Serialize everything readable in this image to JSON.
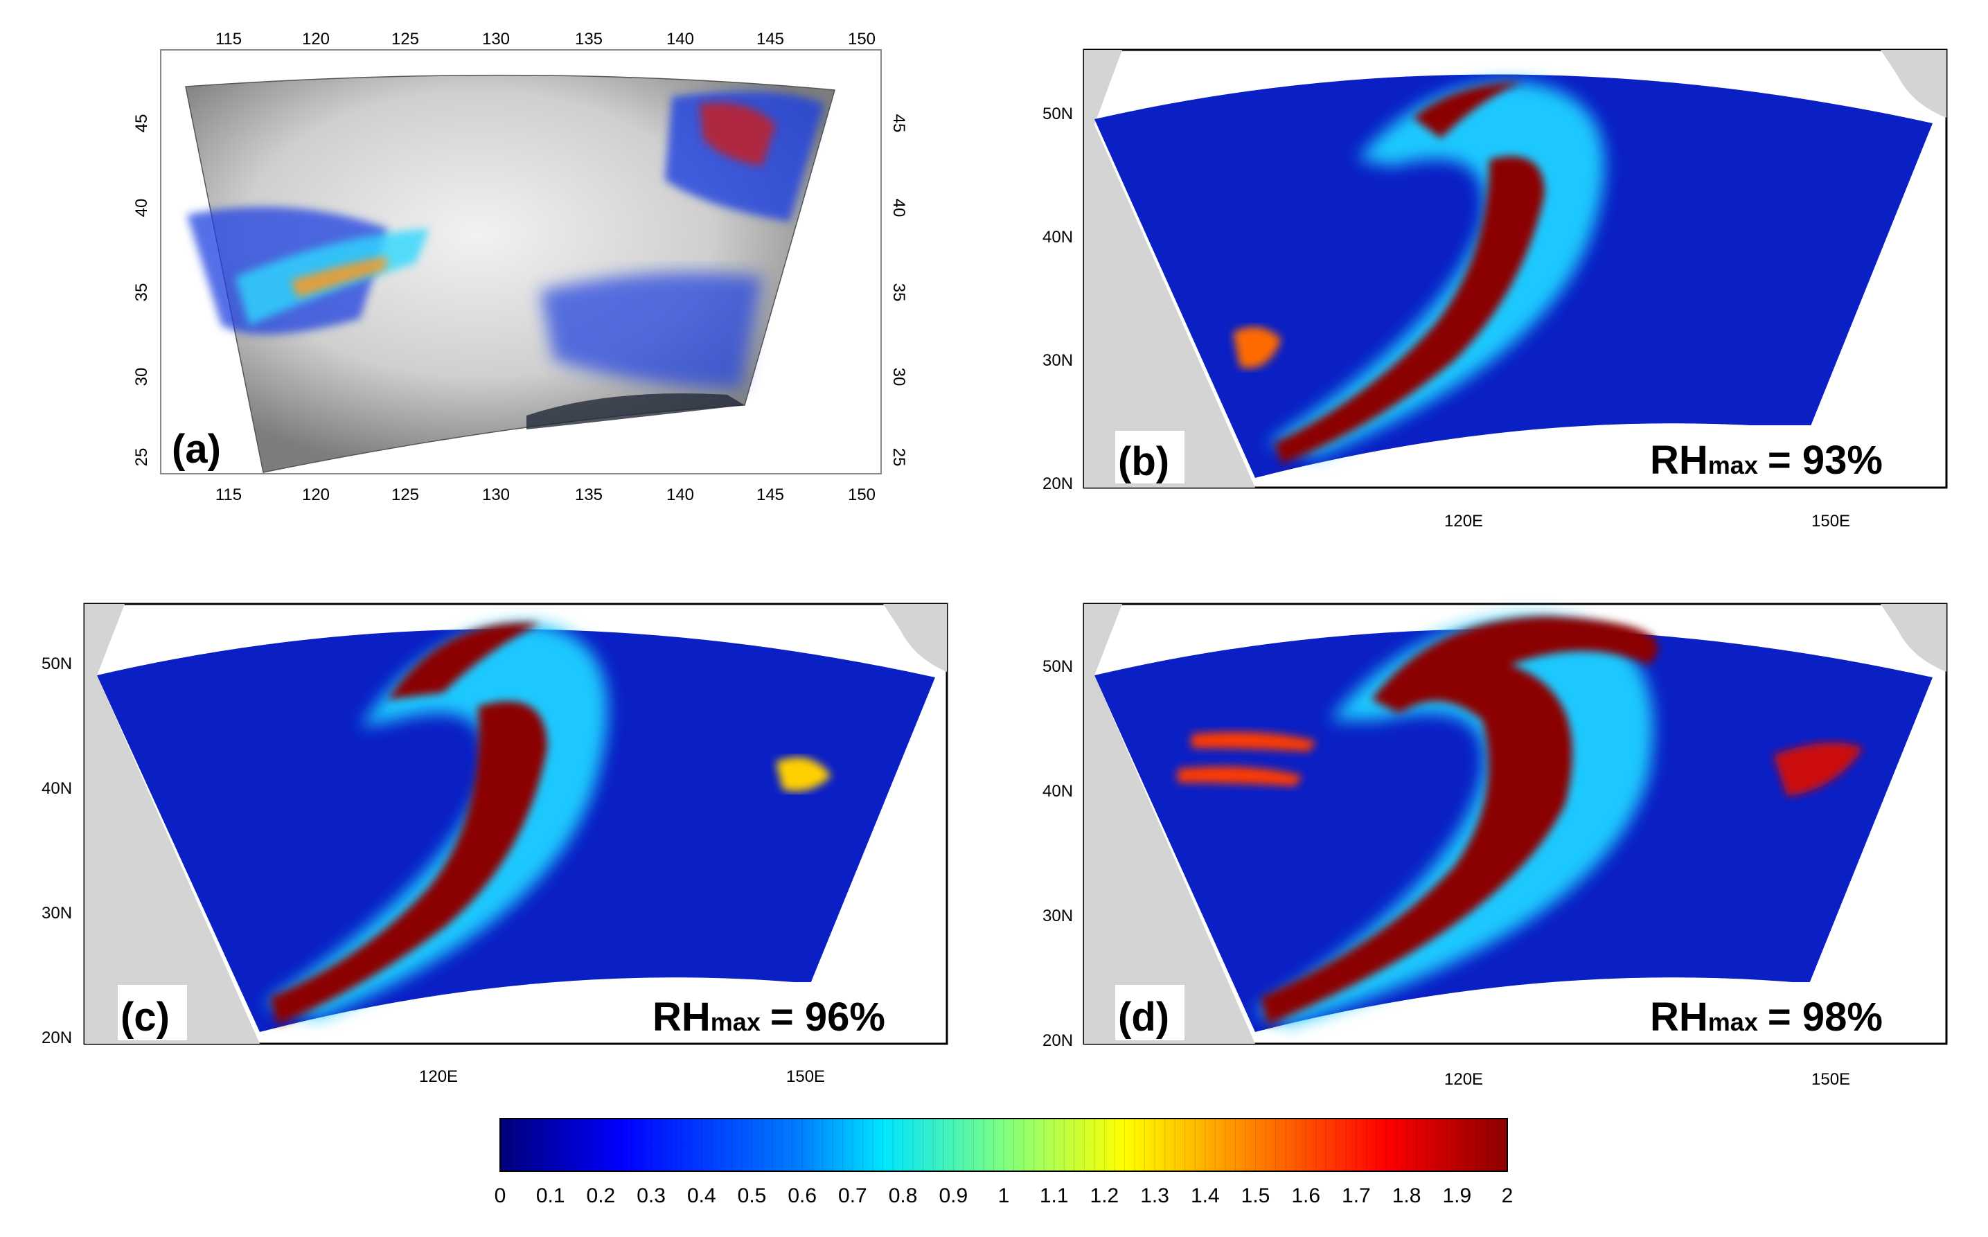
{
  "panels": [
    {
      "id": "a",
      "label": "(a)",
      "lon_ticks_top": [
        "115",
        "120",
        "125",
        "130",
        "135",
        "140",
        "145",
        "150"
      ],
      "lon_ticks_bottom": [
        "115",
        "120",
        "125",
        "130",
        "135",
        "140",
        "145",
        "150"
      ],
      "lat_ticks_left": [
        "45",
        "40",
        "35",
        "30",
        "25"
      ],
      "lat_ticks_right": [
        "45",
        "40",
        "35",
        "30",
        "25"
      ]
    },
    {
      "id": "b",
      "label": "(b)",
      "annotation": "RHmax = 93%",
      "rh_prefix": "RH",
      "rh_sub": "max",
      "rh_value": "= 93%",
      "lat_ticks": [
        "50N",
        "40N",
        "30N",
        "20N"
      ],
      "lon_ticks": [
        "120E",
        "150E"
      ]
    },
    {
      "id": "c",
      "label": "(c)",
      "annotation": "RHmax = 96%",
      "rh_prefix": "RH",
      "rh_sub": "max",
      "rh_value": "= 96%",
      "lat_ticks": [
        "50N",
        "40N",
        "30N",
        "20N"
      ],
      "lon_ticks": [
        "120E",
        "150E"
      ]
    },
    {
      "id": "d",
      "label": "(d)",
      "annotation": "RHmax = 98%",
      "rh_prefix": "RH",
      "rh_sub": "max",
      "rh_value": "= 98%",
      "lat_ticks": [
        "50N",
        "40N",
        "30N",
        "20N"
      ],
      "lon_ticks": [
        "120E",
        "150E"
      ]
    }
  ],
  "colorbar": {
    "min": 0,
    "max": 2,
    "tick_labels": [
      "0",
      "0.1",
      "0.2",
      "0.3",
      "0.4",
      "0.5",
      "0.6",
      "0.7",
      "0.8",
      "0.9",
      "1",
      "1.1",
      "1.2",
      "1.3",
      "1.4",
      "1.5",
      "1.6",
      "1.7",
      "1.8",
      "1.9",
      "2"
    ],
    "colormap": "rainbow (dark blue → cyan → yellow → red → dark red)",
    "colors": [
      "#00007a",
      "#0000ff",
      "#0080ff",
      "#00e5ff",
      "#7fff80",
      "#ffff00",
      "#ff8000",
      "#ff0000",
      "#8b0000"
    ]
  },
  "colors": {
    "field_low": "#0a1fc4",
    "field_high": "#8b0000",
    "land": "#d4d4d4",
    "frame": "#000000"
  }
}
